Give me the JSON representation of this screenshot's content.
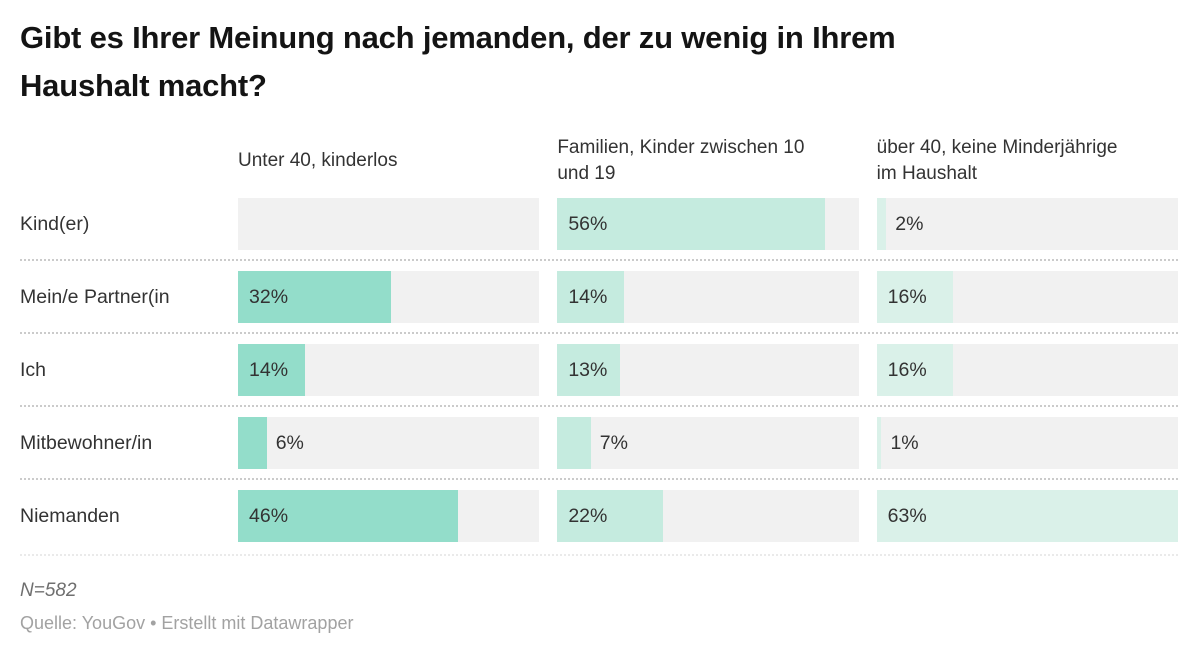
{
  "title": "Gibt es Ihrer Meinung nach jemanden, der zu wenig in Ihrem Haushalt macht?",
  "title_lines": [
    "Gibt es Ihrer Meinung nach jemanden, der zu wenig in Ihrem",
    "Haushalt macht?"
  ],
  "header": {
    "col1_lines": [
      "Unter 40, kinderlos",
      ""
    ],
    "col2_lines": [
      "Familien, Kinder zwischen 10",
      "und 19"
    ],
    "col3_lines": [
      "über 40, keine Minderjährige",
      "im Haushalt"
    ]
  },
  "chart_data": {
    "type": "bar",
    "subtype": "horizontal-bar-table-3-columns",
    "title": "Gibt es Ihrer Meinung nach jemanden, der zu wenig in Ihrem Haushalt macht?",
    "columns": [
      "Unter 40, kinderlos",
      "Familien, Kinder zwischen 10 und 19",
      "über 40, keine Minderjährige im Haushalt"
    ],
    "categories": [
      "Kind(er)",
      "Mein/e Partner(in",
      "Ich",
      "Mitbewohner/in",
      "Niemanden"
    ],
    "series": [
      {
        "name": "Unter 40, kinderlos",
        "values": [
          null,
          32,
          14,
          6,
          46
        ]
      },
      {
        "name": "Familien, Kinder zwischen 10 und 19",
        "values": [
          56,
          14,
          13,
          7,
          22
        ]
      },
      {
        "name": "über 40, keine Minderjährige im Haushalt",
        "values": [
          2,
          16,
          16,
          1,
          63
        ]
      }
    ],
    "value_suffix": "%",
    "scale_max": 63,
    "xlim": [
      0,
      63
    ],
    "grid": false,
    "legend_position": "none",
    "bar_colors": [
      "#93ddca",
      "#c5ebdf",
      "#daf1e9"
    ],
    "track_color": "#f1f1f1",
    "label_color": "#333333"
  },
  "footer": {
    "note": "N=582",
    "source": "Quelle: YouGov • Erstellt mit Datawrapper"
  }
}
